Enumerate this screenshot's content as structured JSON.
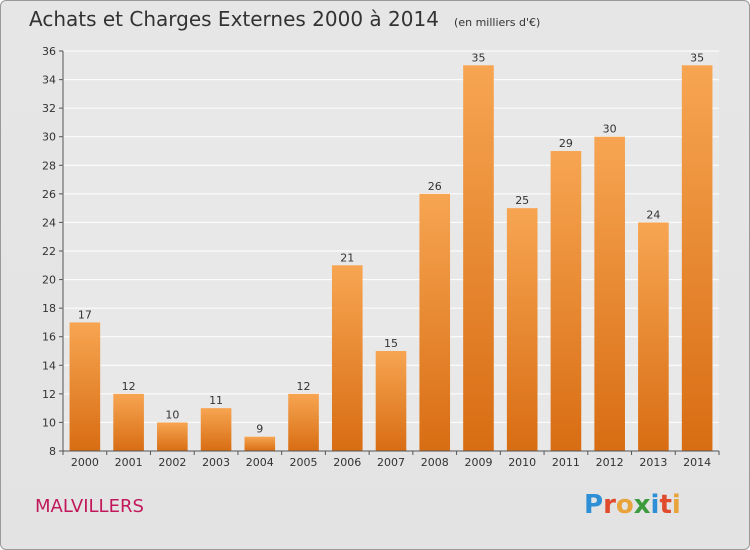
{
  "header": {
    "title": "Achats et Charges Externes 2000 à 2014",
    "unit": "(en milliers d'€)"
  },
  "footer": {
    "commune": "MALVILLERS",
    "logo_text": "Proxiti"
  },
  "colors": {
    "bar_light": "#f7a552",
    "bar_dark": "#d86d13",
    "commune_text": "#c2185b",
    "grid": "#ffffff"
  },
  "chart_data": {
    "type": "bar",
    "title": "Achats et Charges Externes 2000 à 2014",
    "subtitle": "(en milliers d'€)",
    "xlabel": "",
    "ylabel": "",
    "categories": [
      "2000",
      "2001",
      "2002",
      "2003",
      "2004",
      "2005",
      "2006",
      "2007",
      "2008",
      "2009",
      "2010",
      "2011",
      "2012",
      "2013",
      "2014"
    ],
    "values": [
      17,
      12,
      10,
      11,
      9,
      12,
      21,
      15,
      26,
      35,
      25,
      29,
      30,
      24,
      35
    ],
    "ylim": [
      8,
      36
    ],
    "yticks": [
      8,
      10,
      12,
      14,
      16,
      18,
      20,
      22,
      24,
      26,
      28,
      30,
      32,
      34,
      36
    ],
    "grid": true,
    "data_labels": true
  }
}
